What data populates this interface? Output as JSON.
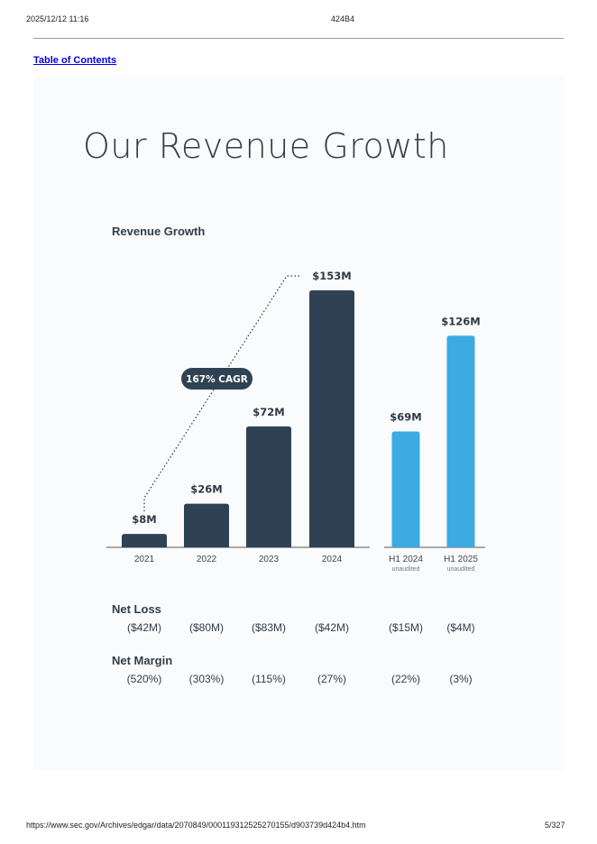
{
  "browser": {
    "timestamp": "2025/12/12 11:16",
    "doc_title": "424B4",
    "url": "https://www.sec.gov/Archives/edgar/data/2070849/000119312525270155/d903739d424b4.htm",
    "page": "5/327"
  },
  "toc_link": "Table of Contents",
  "heading": "Our Revenue Growth",
  "chart_data": {
    "type": "bar",
    "title": "Revenue Growth",
    "categories": [
      "2021",
      "2022",
      "2023",
      "2024",
      "H1 2024",
      "H1 2025"
    ],
    "category_sublabels": [
      "",
      "",
      "",
      "",
      "unaudited",
      "unaudited"
    ],
    "values": [
      8,
      26,
      72,
      153,
      69,
      126
    ],
    "value_labels": [
      "$8M",
      "$26M",
      "$72M",
      "$153M",
      "$69M",
      "$126M"
    ],
    "unit": "$M",
    "bar_colors": [
      "#2e4253",
      "#2e4253",
      "#2e4253",
      "#2e4253",
      "#3babe1",
      "#3babe1"
    ],
    "ylim": [
      0,
      153
    ],
    "grid": false,
    "annotation": "167% CAGR",
    "annotation_color": "#2e4253"
  },
  "net_loss": {
    "label": "Net Loss",
    "values": [
      "($42M)",
      "($80M)",
      "($83M)",
      "($42M)",
      "($15M)",
      "($4M)"
    ]
  },
  "net_margin": {
    "label": "Net Margin",
    "values": [
      "(520%)",
      "(303%)",
      "(115%)",
      "(27%)",
      "(22%)",
      "(3%)"
    ]
  }
}
